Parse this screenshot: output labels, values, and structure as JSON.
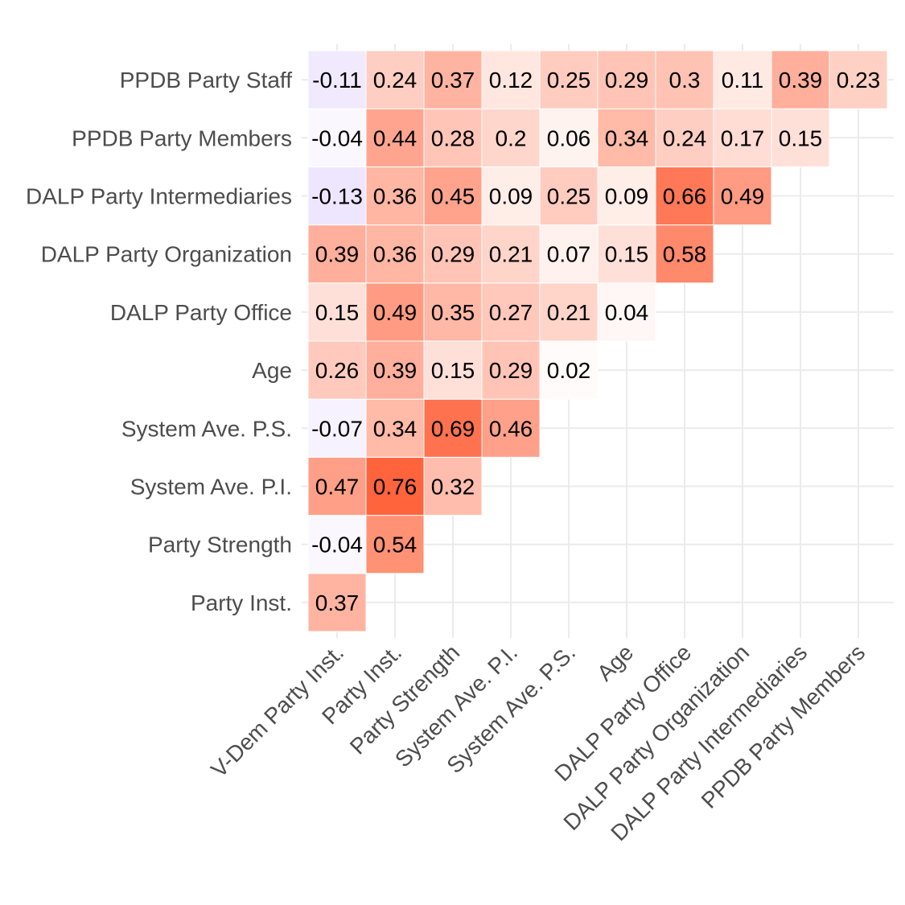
{
  "chart_data": {
    "type": "heatmap",
    "title": "",
    "xlabel": "",
    "ylabel": "",
    "x_categories": [
      "V-Dem Party Inst.",
      "Party Inst.",
      "Party Strength",
      "System Ave. P.I.",
      "System Ave. P.S.",
      "Age",
      "DALP Party Office",
      "DALP Party Organization",
      "DALP Party Intermediaries",
      "PPDB Party Members"
    ],
    "y_categories": [
      "Party Inst.",
      "Party Strength",
      "System Ave. P.I.",
      "System Ave. P.S.",
      "Age",
      "DALP Party Office",
      "DALP Party Organization",
      "DALP Party Intermediaries",
      "PPDB Party Members",
      "PPDB Party Staff"
    ],
    "values": [
      [
        0.37,
        null,
        null,
        null,
        null,
        null,
        null,
        null,
        null,
        null
      ],
      [
        -0.04,
        0.54,
        null,
        null,
        null,
        null,
        null,
        null,
        null,
        null
      ],
      [
        0.47,
        0.76,
        0.32,
        null,
        null,
        null,
        null,
        null,
        null,
        null
      ],
      [
        -0.07,
        0.34,
        0.69,
        0.46,
        null,
        null,
        null,
        null,
        null,
        null
      ],
      [
        0.26,
        0.39,
        0.15,
        0.29,
        0.02,
        null,
        null,
        null,
        null,
        null
      ],
      [
        0.15,
        0.49,
        0.35,
        0.27,
        0.21,
        0.04,
        null,
        null,
        null,
        null
      ],
      [
        0.39,
        0.36,
        0.29,
        0.21,
        0.07,
        0.15,
        0.58,
        null,
        null,
        null
      ],
      [
        -0.13,
        0.36,
        0.45,
        0.09,
        0.25,
        0.09,
        0.66,
        0.49,
        null,
        null
      ],
      [
        -0.04,
        0.44,
        0.28,
        0.2,
        0.06,
        0.34,
        0.24,
        0.17,
        0.15,
        null
      ],
      [
        -0.11,
        0.24,
        0.37,
        0.12,
        0.25,
        0.29,
        0.3,
        0.11,
        0.39,
        0.23
      ]
    ],
    "labels": [
      [
        "0.37",
        null,
        null,
        null,
        null,
        null,
        null,
        null,
        null,
        null
      ],
      [
        "-0.04",
        "0.54",
        null,
        null,
        null,
        null,
        null,
        null,
        null,
        null
      ],
      [
        "0.47",
        "0.76",
        "0.32",
        null,
        null,
        null,
        null,
        null,
        null,
        null
      ],
      [
        "-0.07",
        "0.34",
        "0.69",
        "0.46",
        null,
        null,
        null,
        null,
        null,
        null
      ],
      [
        "0.26",
        "0.39",
        "0.15",
        "0.29",
        "0.02",
        null,
        null,
        null,
        null,
        null
      ],
      [
        "0.15",
        "0.49",
        "0.35",
        "0.27",
        "0.21",
        "0.04",
        null,
        null,
        null,
        null
      ],
      [
        "0.39",
        "0.36",
        "0.29",
        "0.21",
        "0.07",
        "0.15",
        "0.58",
        null,
        null,
        null
      ],
      [
        "-0.13",
        "0.36",
        "0.45",
        "0.09",
        "0.25",
        "0.09",
        "0.66",
        "0.49",
        null,
        null
      ],
      [
        "-0.04",
        "0.44",
        "0.28",
        "0.2",
        "0.06",
        "0.34",
        "0.24",
        "0.17",
        "0.15",
        null
      ],
      [
        "-0.11",
        "0.24",
        "0.37",
        "0.12",
        "0.25",
        "0.29",
        "0.3",
        "0.11",
        "0.39",
        "0.23"
      ]
    ],
    "color_scale": {
      "low_color": "#7f3fff",
      "mid_color": "#ffffff",
      "high_color": "#ff3300",
      "low_value": -1,
      "mid_value": 0,
      "high_value": 1
    },
    "grid": true,
    "legend": "none"
  }
}
